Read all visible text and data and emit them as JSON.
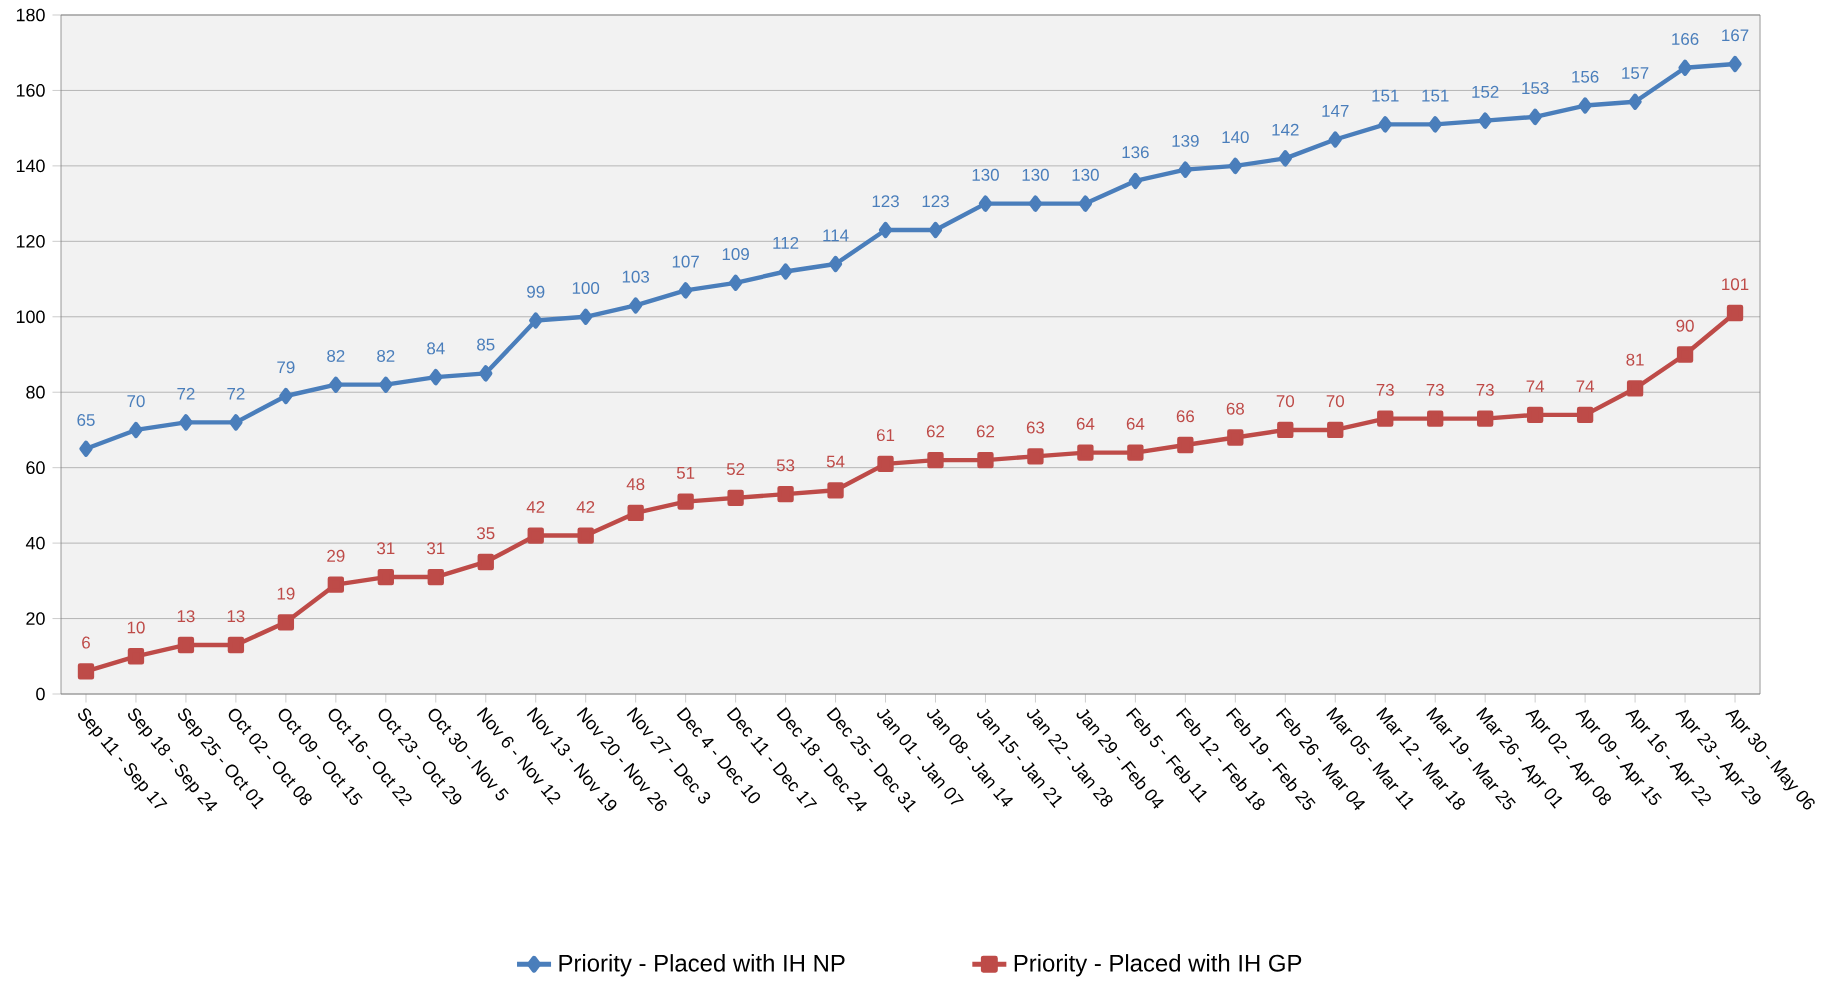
{
  "chart_data": {
    "type": "line",
    "categories": [
      "Sep 11 - Sep 17",
      "Sep 18 - Sep 24",
      "Sep 25 - Oct 01",
      "Oct 02 - Oct 08",
      "Oct 09 - Oct 15",
      "Oct 16 - Oct 22",
      "Oct 23 - Oct 29",
      "Oct 30 - Nov 5",
      "Nov 6 - Nov 12",
      "Nov 13 - Nov 19",
      "Nov 20 - Nov 26",
      "Nov 27 - Dec 3",
      "Dec 4 - Dec 10",
      "Dec 11 - Dec 17",
      "Dec 18 - Dec 24",
      "Dec 25 - Dec 31",
      "Jan 01 - Jan 07",
      "Jan 08 - Jan 14",
      "Jan 15 - Jan 21",
      "Jan 22 - Jan 28",
      "Jan 29 - Feb 04",
      "Feb 5 - Feb 11",
      "Feb 12 - Feb 18",
      "Feb 19 - Feb 25",
      "Feb 26 - Mar 04",
      "Mar 05 - Mar 11",
      "Mar 12 - Mar 18",
      "Mar 19 - Mar 25",
      "Mar 26 - Apr 01",
      "Apr 02 - Apr 08",
      "Apr 09 - Apr 15",
      "Apr 16 - Apr 22",
      "Apr 23 - Apr 29",
      "Apr 30 - May 06"
    ],
    "series": [
      {
        "name": "Priority - Placed with IH NP",
        "color": "#4a7ebb",
        "marker": "diamond",
        "values": [
          65,
          70,
          72,
          72,
          79,
          82,
          82,
          84,
          85,
          99,
          100,
          103,
          107,
          109,
          112,
          114,
          123,
          123,
          130,
          130,
          130,
          136,
          139,
          140,
          142,
          147,
          151,
          151,
          152,
          153,
          156,
          157,
          166,
          167
        ]
      },
      {
        "name": "Priority - Placed with IH GP",
        "color": "#be4b48",
        "marker": "square",
        "values": [
          6,
          10,
          13,
          13,
          19,
          29,
          31,
          31,
          35,
          42,
          42,
          48,
          51,
          52,
          53,
          54,
          61,
          62,
          62,
          63,
          64,
          64,
          66,
          68,
          70,
          70,
          73,
          73,
          73,
          74,
          74,
          81,
          90,
          101
        ]
      }
    ],
    "ylim": [
      0,
      180
    ],
    "yticks": [
      0,
      20,
      40,
      60,
      80,
      100,
      120,
      140,
      160,
      180
    ],
    "grid": "y",
    "legend": "bottom",
    "data_labels": true
  }
}
